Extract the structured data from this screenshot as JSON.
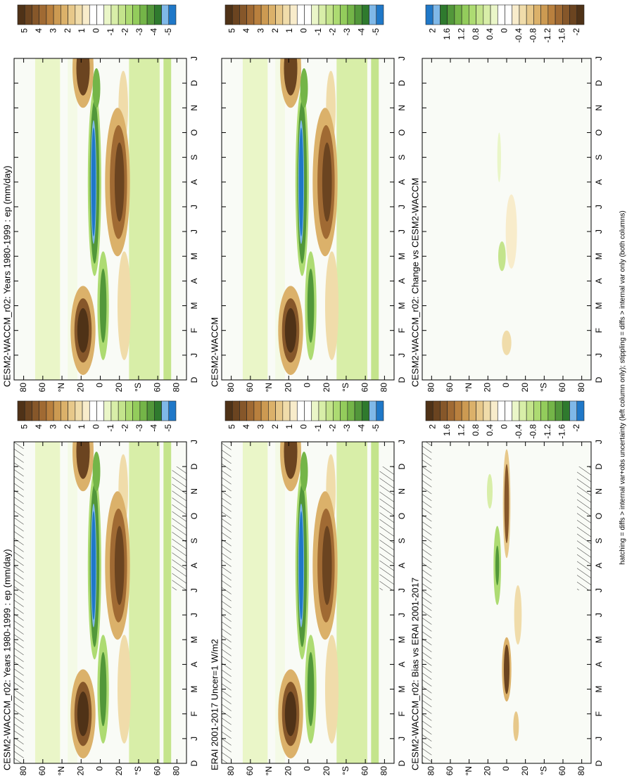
{
  "chart_data": [
    {
      "type": "contour",
      "title": "CESM2-WACCM_r02: Years 1980-1999 : ep (mm/day)",
      "hatching": true,
      "field": "mean",
      "categories": [
        "D",
        "J",
        "F",
        "M",
        "A",
        "M",
        "J",
        "J",
        "A",
        "S",
        "O",
        "N",
        "D",
        "J"
      ],
      "ylim": [
        -90,
        90
      ],
      "yticks": [
        80,
        60,
        {
          "value": 40,
          "label": "°N"
        },
        20,
        0,
        {
          "value": -20,
          "label": "20"
        },
        {
          "value": -40,
          "label": "°S"
        },
        {
          "value": -60,
          "label": "60"
        },
        {
          "value": -80,
          "label": "80"
        }
      ],
      "colorbar": {
        "ticks": [
          5,
          4,
          3,
          2,
          1,
          0,
          -1,
          -2,
          -3,
          -4,
          -5
        ],
        "colors": [
          "#4f3217",
          "#6b4420",
          "#86572a",
          "#a06a33",
          "#b9803e",
          "#cc9a52",
          "#dbb16a",
          "#e7c88a",
          "#f0dcaa",
          "#f8eccb",
          "#ffffff",
          "#ffffff",
          "#eaf6c8",
          "#d8eea8",
          "#c4e48c",
          "#addb72",
          "#93cc5c",
          "#74b548",
          "#52973a",
          "#2f7a2e",
          "#7fb8e8",
          "#1f78c8"
        ]
      }
    },
    {
      "type": "contour",
      "title": "CESM2-WACCM_r02: Years 1980-1999 : ep (mm/day)",
      "hatching": false,
      "field": "mean",
      "categories": [
        "D",
        "J",
        "F",
        "M",
        "A",
        "M",
        "J",
        "J",
        "A",
        "S",
        "O",
        "N",
        "D",
        "J"
      ],
      "ylim": [
        -90,
        90
      ],
      "yticks": [
        80,
        60,
        {
          "value": 40,
          "label": "°N"
        },
        20,
        0,
        {
          "value": -20,
          "label": "20"
        },
        {
          "value": -40,
          "label": "°S"
        },
        {
          "value": -60,
          "label": "60"
        },
        {
          "value": -80,
          "label": "80"
        }
      ],
      "colorbar": {
        "ticks": [
          5,
          4,
          3,
          2,
          1,
          0,
          -1,
          -2,
          -3,
          -4,
          -5
        ],
        "colors": [
          "#4f3217",
          "#6b4420",
          "#86572a",
          "#a06a33",
          "#b9803e",
          "#cc9a52",
          "#dbb16a",
          "#e7c88a",
          "#f0dcaa",
          "#f8eccb",
          "#ffffff",
          "#ffffff",
          "#eaf6c8",
          "#d8eea8",
          "#c4e48c",
          "#addb72",
          "#93cc5c",
          "#74b548",
          "#52973a",
          "#2f7a2e",
          "#7fb8e8",
          "#1f78c8"
        ]
      }
    },
    {
      "type": "contour",
      "title": "ERAI 2001-2017 Uncer=1 W/m2",
      "hatching": true,
      "field": "mean",
      "categories": [
        "D",
        "J",
        "F",
        "M",
        "A",
        "M",
        "J",
        "J",
        "A",
        "S",
        "O",
        "N",
        "D",
        "J"
      ],
      "ylim": [
        -90,
        90
      ],
      "yticks": [
        80,
        60,
        {
          "value": 40,
          "label": "°N"
        },
        20,
        0,
        {
          "value": -20,
          "label": "20"
        },
        {
          "value": -40,
          "label": "°S"
        },
        {
          "value": -60,
          "label": "60"
        },
        {
          "value": -80,
          "label": "80"
        }
      ],
      "colorbar": {
        "ticks": [
          5,
          4,
          3,
          2,
          1,
          0,
          -1,
          -2,
          -3,
          -4,
          -5
        ],
        "colors": [
          "#4f3217",
          "#6b4420",
          "#86572a",
          "#a06a33",
          "#b9803e",
          "#cc9a52",
          "#dbb16a",
          "#e7c88a",
          "#f0dcaa",
          "#f8eccb",
          "#ffffff",
          "#ffffff",
          "#eaf6c8",
          "#d8eea8",
          "#c4e48c",
          "#addb72",
          "#93cc5c",
          "#74b548",
          "#52973a",
          "#2f7a2e",
          "#7fb8e8",
          "#1f78c8"
        ]
      }
    },
    {
      "type": "contour",
      "title": "CESM2-WACCM",
      "hatching": false,
      "field": "mean",
      "categories": [
        "D",
        "J",
        "F",
        "M",
        "A",
        "M",
        "J",
        "J",
        "A",
        "S",
        "O",
        "N",
        "D",
        "J"
      ],
      "ylim": [
        -90,
        90
      ],
      "yticks": [
        80,
        60,
        {
          "value": 40,
          "label": "°N"
        },
        20,
        0,
        {
          "value": -20,
          "label": "20"
        },
        {
          "value": -40,
          "label": "°S"
        },
        {
          "value": -60,
          "label": "60"
        },
        {
          "value": -80,
          "label": "80"
        }
      ],
      "colorbar": {
        "ticks": [
          5,
          4,
          3,
          2,
          1,
          0,
          -1,
          -2,
          -3,
          -4,
          -5
        ],
        "colors": [
          "#4f3217",
          "#6b4420",
          "#86572a",
          "#a06a33",
          "#b9803e",
          "#cc9a52",
          "#dbb16a",
          "#e7c88a",
          "#f0dcaa",
          "#f8eccb",
          "#ffffff",
          "#ffffff",
          "#eaf6c8",
          "#d8eea8",
          "#c4e48c",
          "#addb72",
          "#93cc5c",
          "#74b548",
          "#52973a",
          "#2f7a2e",
          "#7fb8e8",
          "#1f78c8"
        ]
      }
    },
    {
      "type": "contour",
      "title": "CESM2-WACCM_r02: Bias vs ERAI 2001-2017",
      "hatching": true,
      "field": "bias",
      "categories": [
        "D",
        "J",
        "F",
        "M",
        "A",
        "M",
        "J",
        "J",
        "A",
        "S",
        "O",
        "N",
        "D",
        "J"
      ],
      "ylim": [
        -90,
        90
      ],
      "yticks": [
        80,
        60,
        {
          "value": 40,
          "label": "°N"
        },
        20,
        0,
        {
          "value": -20,
          "label": "20"
        },
        {
          "value": -40,
          "label": "°S"
        },
        {
          "value": -60,
          "label": "60"
        },
        {
          "value": -80,
          "label": "80"
        }
      ],
      "colorbar": {
        "ticks": [
          2,
          1.6,
          1.2,
          0.8,
          0.4,
          0,
          -0.4,
          -0.8,
          -1.2,
          -1.6,
          -2
        ],
        "colors": [
          "#4f3217",
          "#6b4420",
          "#86572a",
          "#a06a33",
          "#b9803e",
          "#cc9a52",
          "#dbb16a",
          "#e7c88a",
          "#f0dcaa",
          "#f8eccb",
          "#ffffff",
          "#ffffff",
          "#eaf6c8",
          "#d8eea8",
          "#c4e48c",
          "#addb72",
          "#93cc5c",
          "#74b548",
          "#52973a",
          "#2f7a2e",
          "#7fb8e8",
          "#1f78c8"
        ]
      }
    },
    {
      "type": "contour",
      "title": "CESM2-WACCM_r02: Change vs CESM2-WACCM",
      "hatching": false,
      "field": "change",
      "categories": [
        "D",
        "J",
        "F",
        "M",
        "A",
        "M",
        "J",
        "J",
        "A",
        "S",
        "O",
        "N",
        "D",
        "J"
      ],
      "ylim": [
        -90,
        90
      ],
      "yticks": [
        80,
        60,
        {
          "value": 40,
          "label": "°N"
        },
        20,
        0,
        {
          "value": -20,
          "label": "20"
        },
        {
          "value": -40,
          "label": "°S"
        },
        {
          "value": -60,
          "label": "60"
        },
        {
          "value": -80,
          "label": "80"
        }
      ],
      "colorbar": {
        "ticks": [
          2,
          1.6,
          1.2,
          0.8,
          0.4,
          0,
          -0.4,
          -0.8,
          -1.2,
          -1.6,
          -2
        ],
        "colors": [
          "#1f78c8",
          "#7fb8e8",
          "#2f7a2e",
          "#52973a",
          "#74b548",
          "#93cc5c",
          "#addb72",
          "#c4e48c",
          "#d8eea8",
          "#eaf6c8",
          "#ffffff",
          "#ffffff",
          "#f8eccb",
          "#f0dcaa",
          "#e7c88a",
          "#dbb16a",
          "#cc9a52",
          "#b9803e",
          "#a06a33",
          "#86572a",
          "#6b4420",
          "#4f3217"
        ]
      }
    }
  ],
  "caption": "hatching = diffs > internal var+obs uncertainty (left column only); stippling = diffs > internal var only (both columns)"
}
